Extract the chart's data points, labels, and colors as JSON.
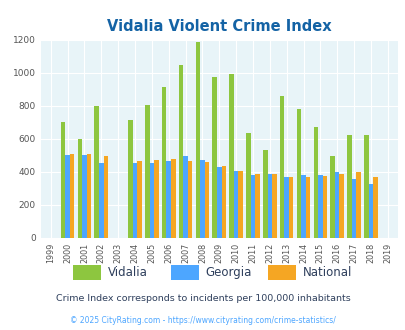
{
  "title": "Vidalia Violent Crime Index",
  "years": [
    1999,
    2000,
    2001,
    2002,
    2003,
    2004,
    2005,
    2006,
    2007,
    2008,
    2009,
    2010,
    2011,
    2012,
    2013,
    2014,
    2015,
    2016,
    2017,
    2018,
    2019
  ],
  "vidalia": [
    0,
    700,
    600,
    800,
    0,
    715,
    805,
    910,
    1045,
    1185,
    975,
    990,
    635,
    530,
    860,
    778,
    670,
    495,
    620,
    620,
    0
  ],
  "georgia": [
    0,
    500,
    500,
    455,
    0,
    450,
    450,
    465,
    495,
    470,
    430,
    405,
    380,
    385,
    365,
    380,
    382,
    400,
    357,
    323,
    0
  ],
  "national": [
    0,
    505,
    505,
    495,
    0,
    463,
    469,
    474,
    462,
    458,
    432,
    404,
    387,
    387,
    368,
    366,
    373,
    387,
    395,
    369,
    0
  ],
  "vidalia_color": "#8dc63f",
  "georgia_color": "#4da6ff",
  "national_color": "#f5a623",
  "bg_color": "#e8f4f8",
  "ylim": [
    0,
    1200
  ],
  "yticks": [
    0,
    200,
    400,
    600,
    800,
    1000,
    1200
  ],
  "subtitle": "Crime Index corresponds to incidents per 100,000 inhabitants",
  "footer": "© 2025 CityRating.com - https://www.cityrating.com/crime-statistics/",
  "title_color": "#1463a5",
  "subtitle_color": "#2e3f5c",
  "footer_color": "#4da6ff",
  "legend_label_color": "#2e3f5c"
}
